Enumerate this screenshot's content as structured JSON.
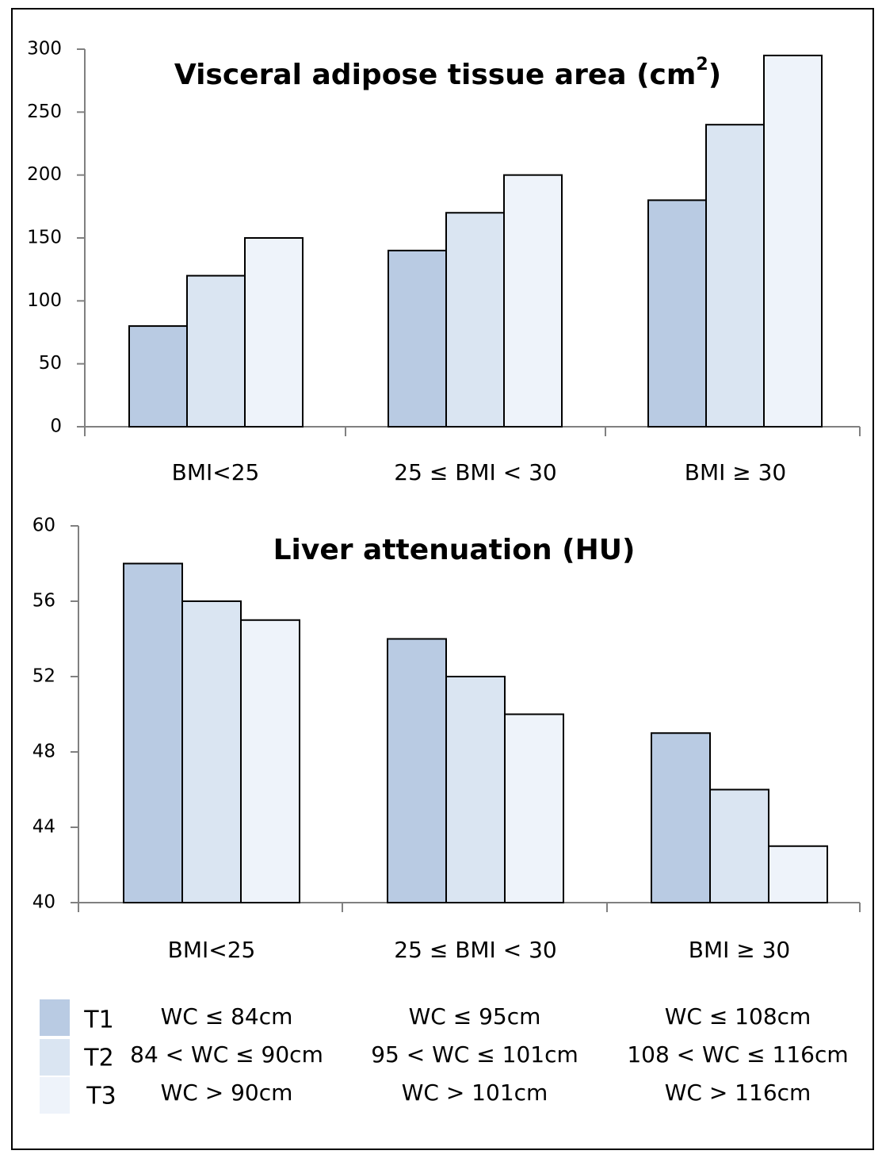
{
  "chart_data": [
    {
      "type": "bar",
      "title": "Visceral adipose tissue area (cm",
      "title_superscript": "2",
      "title_suffix": ")",
      "categories": [
        "BMI<25",
        "25 ≤ BMI < 30",
        "BMI ≥ 30"
      ],
      "series": [
        {
          "name": "T1",
          "values": [
            80,
            140,
            180
          ]
        },
        {
          "name": "T2",
          "values": [
            120,
            170,
            240
          ]
        },
        {
          "name": "T3",
          "values": [
            150,
            200,
            295
          ]
        }
      ],
      "ylim": [
        0,
        300
      ],
      "yticks": [
        0,
        50,
        100,
        150,
        200,
        250,
        300
      ],
      "xlabel": "",
      "ylabel": "",
      "grid": false
    },
    {
      "type": "bar",
      "title": "Liver attenuation (HU)",
      "categories": [
        "BMI<25",
        "25 ≤ BMI < 30",
        "BMI ≥ 30"
      ],
      "series": [
        {
          "name": "T1",
          "values": [
            58,
            54,
            49
          ]
        },
        {
          "name": "T2",
          "values": [
            56,
            52,
            46
          ]
        },
        {
          "name": "T3",
          "values": [
            55,
            50,
            43
          ]
        }
      ],
      "ylim": [
        40,
        60
      ],
      "yticks": [
        40,
        44,
        48,
        52,
        56,
        60
      ],
      "xlabel": "",
      "ylabel": "",
      "grid": false
    }
  ],
  "colors": {
    "T1": "#b9cbe3",
    "T2": "#dae5f2",
    "T3": "#eef3fa",
    "axis": "#808080",
    "bar_stroke": "#000000"
  },
  "legend": {
    "rows": [
      {
        "series": "T1",
        "cells": [
          "WC ≤ 84cm",
          "WC ≤ 95cm",
          "WC ≤ 108cm"
        ]
      },
      {
        "series": "T2",
        "cells": [
          "84 < WC ≤ 90cm",
          "95 < WC ≤ 101cm",
          "108 < WC ≤ 116cm"
        ]
      },
      {
        "series": "T3",
        "cells": [
          "WC > 90cm",
          "WC > 101cm",
          "WC > 116cm"
        ]
      }
    ]
  }
}
